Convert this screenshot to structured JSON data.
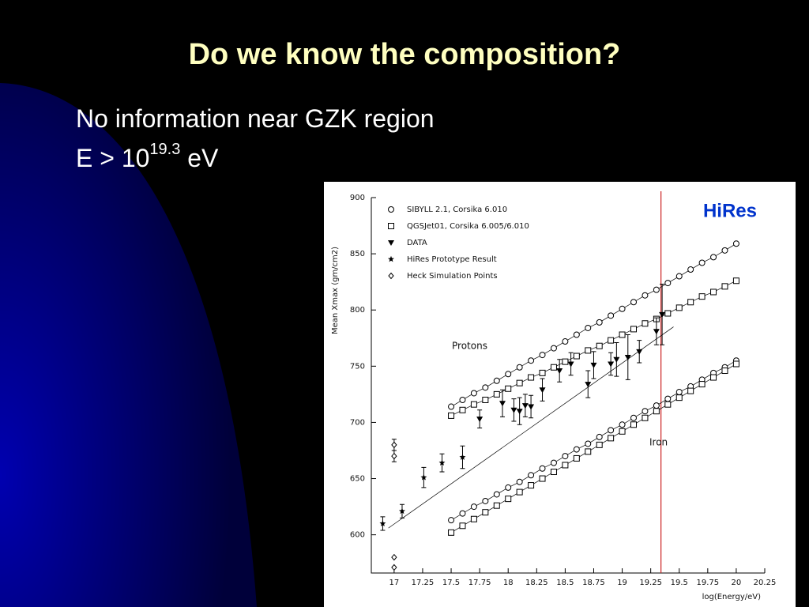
{
  "slide": {
    "title": "Do we know the composition?",
    "bullets": [
      {
        "text": "No information near GZK region"
      },
      {
        "text": "E > 10",
        "superscript": "19.3",
        "tail": " eV"
      }
    ]
  },
  "chart_data": {
    "type": "scatter",
    "xlabel": "log(Energy/eV)",
    "ylabel": "Mean Xmax (gm/cm2)",
    "annotations": [
      "HiRes",
      "Protons",
      "Iron"
    ],
    "xlim": [
      16.8,
      20.25
    ],
    "ylim": [
      566,
      900
    ],
    "xticks": [
      17,
      17.25,
      17.5,
      17.75,
      18,
      18.25,
      18.5,
      18.75,
      19,
      19.25,
      19.5,
      19.75,
      20,
      20.25
    ],
    "yticks": [
      600,
      650,
      700,
      750,
      800,
      850,
      900
    ],
    "vline": {
      "x": 19.34,
      "color": "#cc2222"
    },
    "series": [
      {
        "name": "SIBYLL 2.1, Corsika 6.010",
        "marker": "circle",
        "color": "#000000",
        "line": true,
        "x": [
          17.5,
          17.6,
          17.7,
          17.8,
          17.9,
          18.0,
          18.1,
          18.2,
          18.3,
          18.4,
          18.5,
          18.6,
          18.7,
          18.8,
          18.9,
          19.0,
          19.1,
          19.2,
          19.3,
          19.4,
          19.5,
          19.6,
          19.7,
          19.8,
          19.9,
          20.0
        ],
        "values": [
          714,
          720,
          726,
          731,
          737,
          743,
          749,
          755,
          760,
          766,
          772,
          778,
          784,
          789,
          795,
          801,
          807,
          813,
          818,
          824,
          830,
          836,
          842,
          847,
          853,
          859
        ],
        "x_iron": [
          17.5,
          17.6,
          17.7,
          17.8,
          17.9,
          18.0,
          18.1,
          18.2,
          18.3,
          18.4,
          18.5,
          18.6,
          18.7,
          18.8,
          18.9,
          19.0,
          19.1,
          19.2,
          19.3,
          19.4,
          19.5,
          19.6,
          19.7,
          19.8,
          19.9,
          20.0
        ],
        "values_iron": [
          613,
          619,
          625,
          630,
          636,
          642,
          647,
          653,
          659,
          664,
          670,
          676,
          681,
          687,
          693,
          698,
          704,
          710,
          715,
          721,
          727,
          732,
          738,
          744,
          749,
          755
        ]
      },
      {
        "name": "QGSJet01, Corsika 6.005/6.010",
        "marker": "square",
        "color": "#000000",
        "line": true,
        "x": [
          17.5,
          17.6,
          17.7,
          17.8,
          17.9,
          18.0,
          18.1,
          18.2,
          18.3,
          18.4,
          18.5,
          18.6,
          18.7,
          18.8,
          18.9,
          19.0,
          19.1,
          19.2,
          19.3,
          19.4,
          19.5,
          19.6,
          19.7,
          19.8,
          19.9,
          20.0
        ],
        "values": [
          706,
          711,
          716,
          720,
          725,
          730,
          735,
          740,
          744,
          749,
          754,
          759,
          764,
          768,
          773,
          778,
          783,
          788,
          792,
          797,
          802,
          807,
          812,
          816,
          821,
          826
        ],
        "x_iron": [
          17.5,
          17.6,
          17.7,
          17.8,
          17.9,
          18.0,
          18.1,
          18.2,
          18.3,
          18.4,
          18.5,
          18.6,
          18.7,
          18.8,
          18.9,
          19.0,
          19.1,
          19.2,
          19.3,
          19.4,
          19.5,
          19.6,
          19.7,
          19.8,
          19.9,
          20.0
        ],
        "values_iron": [
          602,
          608,
          614,
          620,
          626,
          632,
          638,
          644,
          650,
          656,
          662,
          668,
          674,
          680,
          686,
          692,
          698,
          704,
          710,
          716,
          722,
          728,
          734,
          740,
          746,
          752
        ]
      },
      {
        "name": "DATA",
        "marker": "triangle",
        "color": "#000000",
        "x": [
          17.75,
          17.95,
          18.05,
          18.1,
          18.15,
          18.2,
          18.3,
          18.45,
          18.55,
          18.7,
          18.75,
          18.9,
          18.95,
          19.05,
          19.15,
          19.3,
          19.35
        ],
        "values": [
          703,
          717,
          711,
          710,
          715,
          714,
          729,
          746,
          752,
          734,
          751,
          752,
          756,
          758,
          763,
          781,
          796
        ],
        "errors": [
          8,
          12,
          10,
          12,
          10,
          10,
          10,
          10,
          10,
          12,
          12,
          10,
          15,
          20,
          10,
          12,
          27
        ],
        "fit": {
          "x": [
            16.95,
            19.45
          ],
          "values": [
            606,
            785
          ]
        }
      },
      {
        "name": "HiRes Prototype Result",
        "marker": "star",
        "color": "#000000",
        "x": [
          16.9,
          17.07,
          17.26,
          17.42,
          17.6
        ],
        "values": [
          610,
          621,
          651,
          664,
          669
        ],
        "errors": [
          6,
          6,
          9,
          8,
          10
        ]
      },
      {
        "name": "Heck Simulation Points",
        "marker": "diamond",
        "color": "#000000",
        "x": [
          17,
          17,
          17,
          17
        ],
        "values": [
          680,
          670,
          580,
          571
        ],
        "errors": [
          5,
          5,
          0,
          0
        ]
      }
    ]
  }
}
